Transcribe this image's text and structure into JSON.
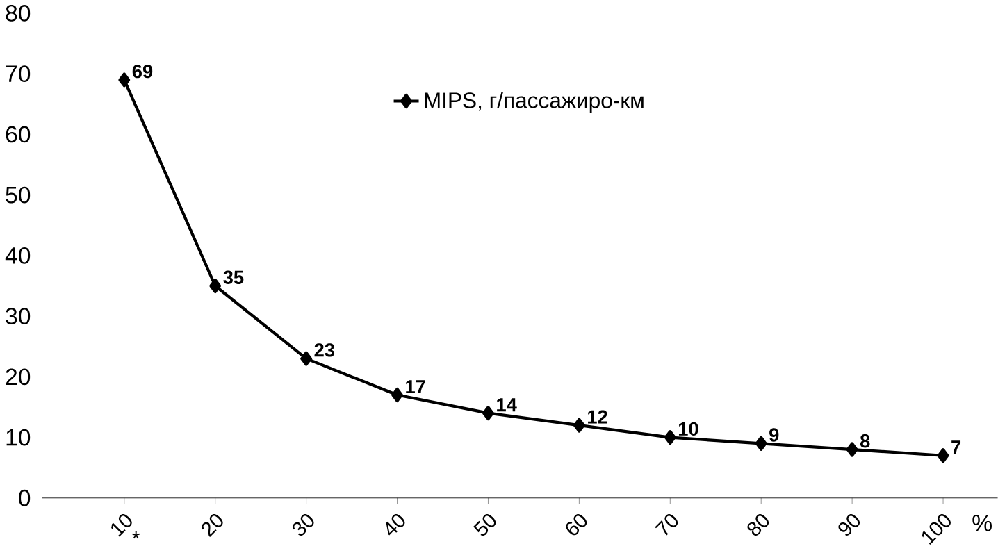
{
  "chart_data": {
    "type": "line",
    "categories": [
      "10",
      "20",
      "30",
      "40",
      "50",
      "60",
      "70",
      "80",
      "90",
      "100"
    ],
    "series": [
      {
        "name": "MIPS, г/пассажиро-км",
        "color": "#000000",
        "values": [
          69,
          35,
          23,
          17,
          14,
          12,
          10,
          9,
          8,
          7
        ]
      }
    ],
    "xlabel": "%",
    "annotations": [
      "*"
    ],
    "ylim": [
      0,
      80
    ],
    "yticks": [
      0,
      10,
      20,
      30,
      40,
      50,
      60,
      70,
      80
    ],
    "data_labels": true,
    "marker": "diamond",
    "line_style": "solid",
    "legend": "top",
    "grid": false
  }
}
